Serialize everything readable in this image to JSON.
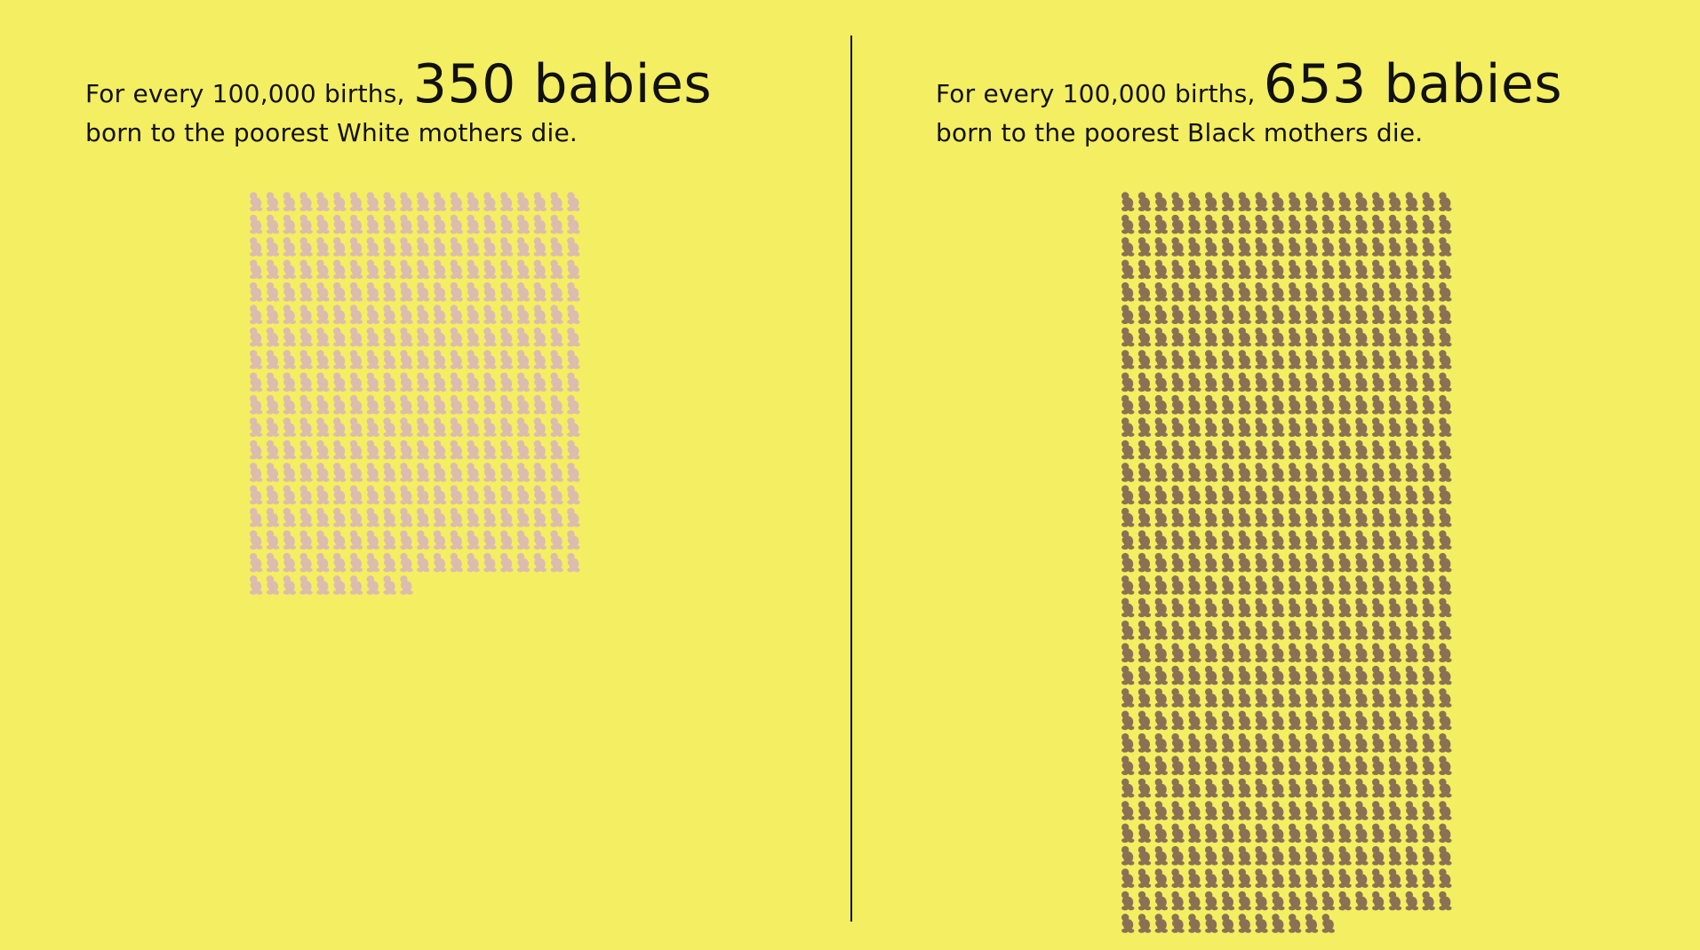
{
  "chart_data": [
    {
      "type": "pictogram",
      "text_prefix": "For every 100,000 births,",
      "value": 350,
      "highlight": "350 babies",
      "text_suffix": "born to the poorest White mothers die.",
      "icon": "baby-icon",
      "icons_per_row": 20,
      "color": "#dcbcae"
    },
    {
      "type": "pictogram",
      "text_prefix": "For every 100,000 births,",
      "value": 653,
      "highlight": "653 babies",
      "text_suffix": "born to the poorest Black mothers die.",
      "icon": "baby-icon",
      "icons_per_row": 20,
      "color": "#8b7153"
    }
  ],
  "colors": {
    "background": "#f4ee62",
    "text": "#111111",
    "divider": "#111111"
  }
}
